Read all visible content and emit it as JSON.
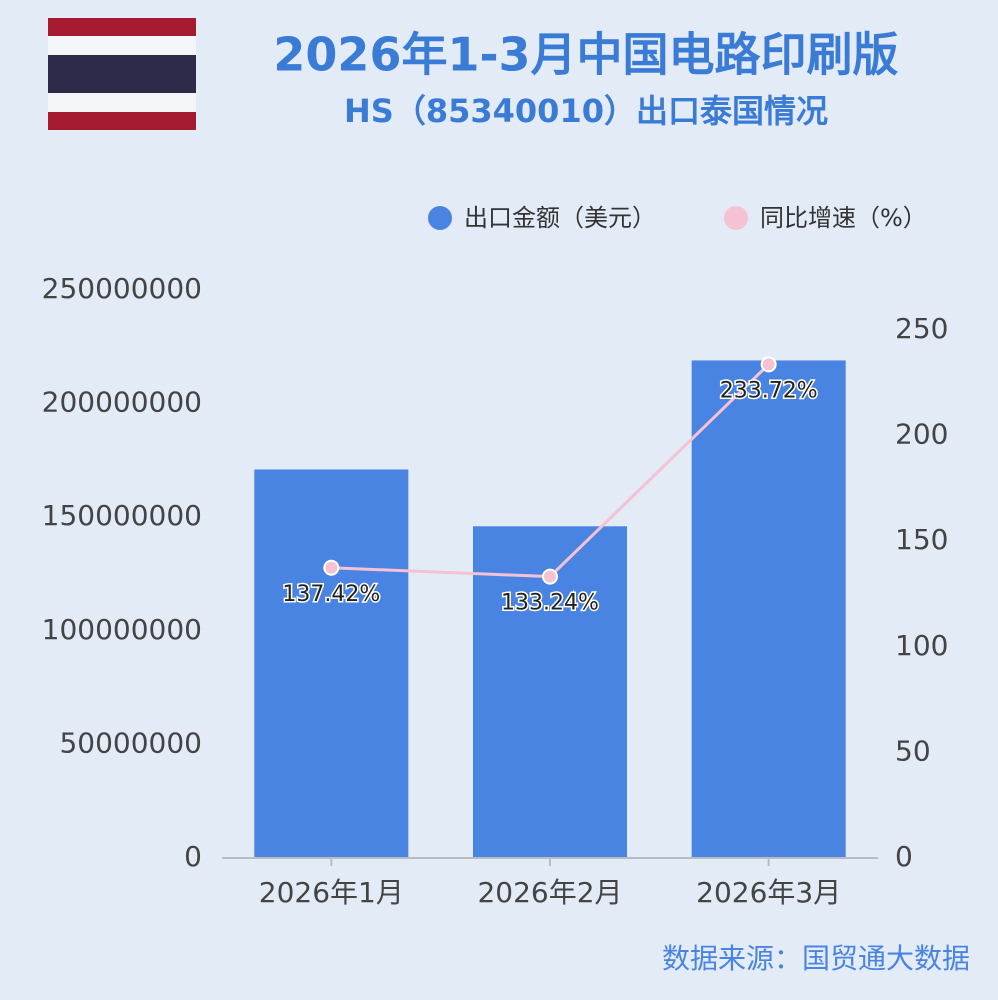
{
  "chart_data": {
    "type": "combo",
    "title": "2026年1-3月中国电路印刷版",
    "subtitle": "HS（85340010）出口泰国情况",
    "source": "数据来源：国贸通大数据",
    "categories": [
      "2026年1月",
      "2026年2月",
      "2026年3月"
    ],
    "series": [
      {
        "name": "出口金额（美元）",
        "type": "bar",
        "color": "#4a84e2",
        "values": [
          171000000,
          146000000,
          219000000
        ]
      },
      {
        "name": "同比增速（%）",
        "type": "line",
        "axis": "y2",
        "color": "#f5c2d4",
        "values": [
          137.42,
          133.24,
          233.72
        ],
        "value_labels": [
          "137.42%",
          "133.24%",
          "233.72%"
        ]
      }
    ],
    "ylim": [
      0,
      250000000
    ],
    "yticks": [
      0,
      50000000,
      100000000,
      150000000,
      200000000,
      250000000
    ],
    "y2lim": [
      0,
      250
    ],
    "y2ticks": [
      0,
      50,
      100,
      150,
      200,
      250
    ]
  }
}
